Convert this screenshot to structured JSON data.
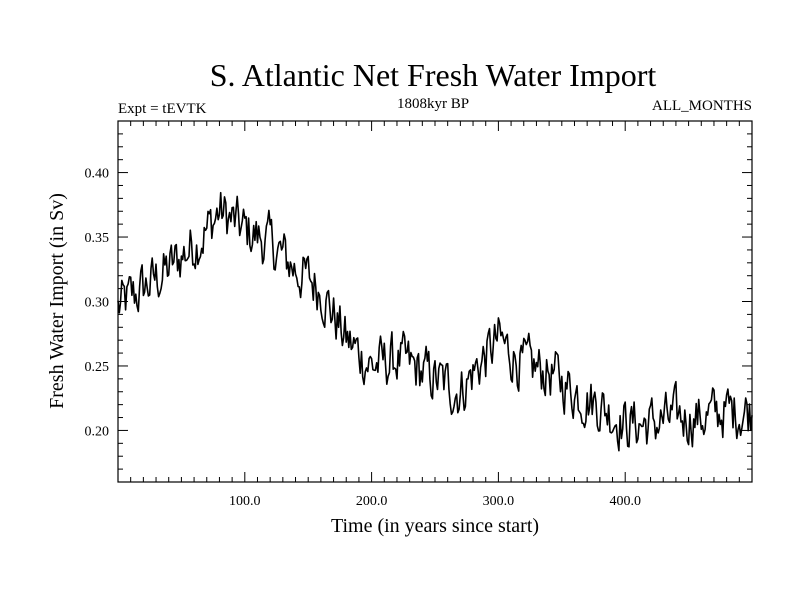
{
  "chart_data": {
    "type": "line",
    "title": "S. Atlantic Net Fresh Water Import",
    "subtitle_left": "Expt = tEVTK",
    "subtitle_center": "1808kyr BP",
    "subtitle_right": "ALL_MONTHS",
    "xlabel": "Time (in years since start)",
    "ylabel": "Fresh Water Import (in Sv)",
    "xlim": [
      0,
      500
    ],
    "ylim": [
      0.16,
      0.44
    ],
    "x_ticks": [
      100,
      200,
      300,
      400
    ],
    "x_tick_labels": [
      "100.0",
      "200.0",
      "300.0",
      "400.0"
    ],
    "y_ticks": [
      0.2,
      0.25,
      0.3,
      0.35,
      0.4
    ],
    "y_tick_labels": [
      "0.20",
      "0.25",
      "0.30",
      "0.35",
      "0.40"
    ],
    "grid": false,
    "series": [
      {
        "name": "S. Atlantic Net Fresh Water Import",
        "x": [
          0,
          20,
          40,
          60,
          70,
          80,
          100,
          120,
          140,
          160,
          180,
          200,
          220,
          240,
          260,
          270,
          280,
          300,
          320,
          340,
          360,
          380,
          400,
          420,
          440,
          460,
          480,
          500
        ],
        "values": [
          0.295,
          0.31,
          0.325,
          0.345,
          0.355,
          0.37,
          0.355,
          0.345,
          0.325,
          0.31,
          0.27,
          0.25,
          0.255,
          0.245,
          0.235,
          0.23,
          0.245,
          0.27,
          0.25,
          0.245,
          0.23,
          0.22,
          0.205,
          0.205,
          0.21,
          0.21,
          0.215,
          0.215
        ]
      }
    ]
  }
}
